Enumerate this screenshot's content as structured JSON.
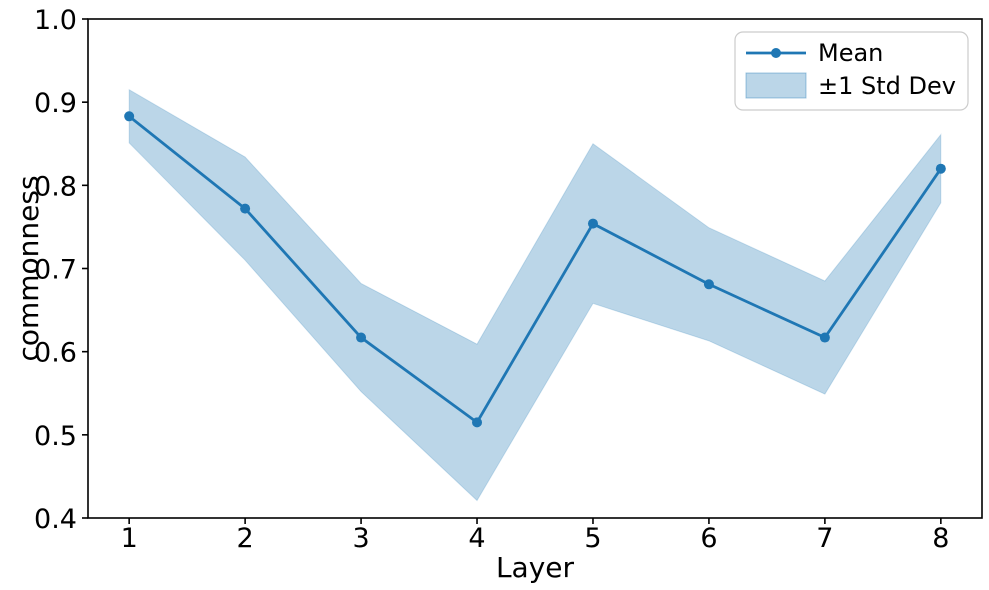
{
  "figure": {
    "background_color": "#ffffff",
    "spine_color": "#000000"
  },
  "chart_data": {
    "type": "line",
    "title": "",
    "xlabel": "Layer",
    "ylabel": "commonness",
    "x": [
      1,
      2,
      3,
      4,
      5,
      6,
      7,
      8
    ],
    "xticks": [
      "1",
      "2",
      "3",
      "4",
      "5",
      "6",
      "7",
      "8"
    ],
    "yticks": [
      "0.4",
      "0.5",
      "0.6",
      "0.7",
      "0.8",
      "0.9",
      "1.0"
    ],
    "xlim": [
      0.645,
      8.355
    ],
    "ylim": [
      0.4,
      1.0
    ],
    "grid": false,
    "legend": {
      "position": "upper right",
      "entries": [
        "Mean",
        "±1 Std Dev"
      ],
      "frame_color": "#cccccc",
      "background": "#ffffff"
    },
    "series": [
      {
        "name": "Mean",
        "type": "line+marker",
        "marker": "circle",
        "color": "#1f77b4",
        "values": [
          0.883,
          0.772,
          0.617,
          0.515,
          0.754,
          0.681,
          0.617,
          0.82
        ]
      },
      {
        "name": "±1 Std Dev",
        "type": "band",
        "color": "#1f77b4",
        "opacity": 0.3,
        "std": [
          0.032,
          0.062,
          0.065,
          0.094,
          0.096,
          0.068,
          0.068,
          0.041
        ],
        "upper": [
          0.915,
          0.834,
          0.682,
          0.609,
          0.85,
          0.749,
          0.685,
          0.861
        ],
        "lower": [
          0.851,
          0.71,
          0.552,
          0.421,
          0.658,
          0.613,
          0.549,
          0.779
        ]
      }
    ]
  }
}
